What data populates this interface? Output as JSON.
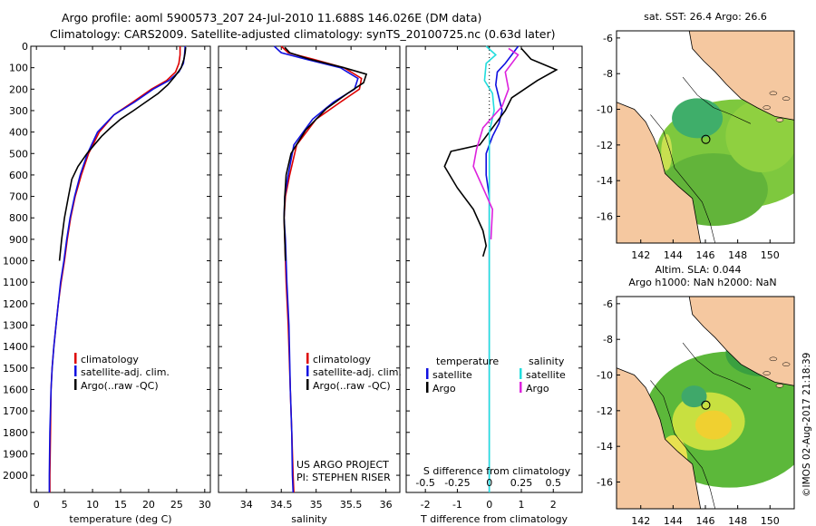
{
  "header": {
    "line1": "Argo profile: aoml 5900573_207 24-Jul-2010 11.688S 146.026E (DM data)",
    "line2": "Climatology: CARS2009. Satellite-adjusted climatology: synTS_20100725.nc (0.63d later)"
  },
  "colors": {
    "climatology": "#dd0000",
    "satellite": "#1010e0",
    "argo": "#000000",
    "sat_salinity": "#22dddd",
    "argo_salinity": "#dd22dd",
    "land": "#f5c8a0"
  },
  "chart_data": [
    {
      "type": "line",
      "id": "temperature",
      "xlabel": "temperature (deg C)",
      "xlim": [
        -1,
        31
      ],
      "ylim": [
        2080,
        0
      ],
      "xticks": [
        0,
        5,
        10,
        15,
        20,
        25,
        30
      ],
      "xtick_labels": [
        "0",
        "5",
        "10",
        "15",
        "20",
        "25",
        "30"
      ],
      "yticks": [
        0,
        100,
        200,
        300,
        400,
        500,
        600,
        700,
        800,
        900,
        1000,
        1100,
        1200,
        1300,
        1400,
        1500,
        1600,
        1700,
        1800,
        1900,
        2000
      ],
      "ytick_labels": [
        "0",
        "100",
        "200",
        "300",
        "400",
        "500",
        "600",
        "700",
        "800",
        "900",
        "1000",
        "1100",
        "1200",
        "1300",
        "1400",
        "1500",
        "1600",
        "1700",
        "1800",
        "1900",
        "2000"
      ],
      "legend": [
        "climatology",
        "satellite-adj. clim.",
        "Argo(..raw -QC)"
      ],
      "series": [
        {
          "name": "climatology",
          "color": "#dd0000",
          "x": [
            25.6,
            25.6,
            25.4,
            24.8,
            23.2,
            20.5,
            17.2,
            13.8,
            11.2,
            9.3,
            8.0,
            6.9,
            6.1,
            5.5,
            5.0,
            4.4,
            3.9,
            3.5,
            3.1,
            2.8,
            2.6,
            2.5,
            2.4,
            2.4
          ],
          "y": [
            0,
            40,
            80,
            120,
            160,
            200,
            260,
            320,
            400,
            500,
            600,
            700,
            800,
            900,
            1000,
            1100,
            1200,
            1300,
            1400,
            1500,
            1600,
            1800,
            2000,
            2080
          ]
        },
        {
          "name": "satellite",
          "color": "#1010e0",
          "x": [
            26.5,
            26.4,
            26.2,
            25.4,
            23.6,
            20.8,
            17.5,
            13.8,
            10.9,
            9.1,
            7.8,
            6.8,
            6.0,
            5.4,
            4.9,
            4.3,
            3.9,
            3.5,
            3.1,
            2.8,
            2.6,
            2.4,
            2.3,
            2.3
          ],
          "y": [
            0,
            40,
            80,
            120,
            160,
            200,
            260,
            320,
            400,
            500,
            600,
            700,
            800,
            900,
            1000,
            1100,
            1200,
            1300,
            1400,
            1500,
            1600,
            1800,
            2000,
            2080
          ]
        },
        {
          "name": "Argo",
          "color": "#000000",
          "x": [
            26.6,
            26.5,
            26.3,
            25.8,
            24.7,
            23.4,
            21.7,
            19.5,
            17.3,
            15.0,
            13.2,
            11.6,
            10.3,
            9.0,
            7.4,
            6.3,
            5.7,
            5.0,
            4.5,
            4.1
          ],
          "y": [
            5,
            30,
            60,
            100,
            140,
            180,
            220,
            260,
            300,
            340,
            380,
            420,
            460,
            500,
            560,
            620,
            700,
            800,
            900,
            1000
          ]
        }
      ]
    },
    {
      "type": "line",
      "id": "salinity",
      "xlabel": "salinity",
      "xlim": [
        33.6,
        36.2
      ],
      "ylim": [
        2080,
        0
      ],
      "xticks": [
        34,
        34.5,
        35,
        35.5,
        36
      ],
      "xtick_labels": [
        "34",
        "34.5",
        "35",
        "35.5",
        "36"
      ],
      "legend": [
        "climatology",
        "satellite-adj. clim.",
        "Argo(..raw -QC)"
      ],
      "series": [
        {
          "name": "climatology",
          "color": "#dd0000",
          "x": [
            34.5,
            34.6,
            34.95,
            35.4,
            35.65,
            35.62,
            35.35,
            35.0,
            34.72,
            34.62,
            34.56,
            34.54,
            34.55,
            34.57,
            34.6,
            34.63,
            34.65,
            34.67,
            34.68
          ],
          "y": [
            0,
            30,
            60,
            100,
            150,
            200,
            260,
            340,
            460,
            600,
            700,
            800,
            900,
            1100,
            1300,
            1600,
            1800,
            2000,
            2080
          ]
        },
        {
          "name": "satellite",
          "color": "#1010e0",
          "x": [
            34.4,
            34.5,
            34.85,
            35.35,
            35.6,
            35.55,
            35.25,
            34.95,
            34.68,
            34.6,
            34.55,
            34.54,
            34.56,
            34.58,
            34.61,
            34.63,
            34.65,
            34.66,
            34.67
          ],
          "y": [
            0,
            30,
            60,
            100,
            150,
            200,
            260,
            340,
            460,
            600,
            700,
            800,
            900,
            1100,
            1300,
            1600,
            1800,
            2000,
            2080
          ]
        },
        {
          "name": "Argo",
          "color": "#000000",
          "x": [
            34.55,
            34.62,
            34.9,
            35.4,
            35.72,
            35.68,
            35.45,
            35.15,
            34.85,
            34.64,
            34.57,
            34.55,
            34.54,
            34.55,
            34.56
          ],
          "y": [
            5,
            30,
            60,
            100,
            130,
            170,
            220,
            290,
            390,
            500,
            600,
            700,
            800,
            900,
            1000
          ]
        }
      ]
    },
    {
      "type": "line",
      "id": "difference",
      "xlabel": "T difference from climatology",
      "x2label": "S difference from climatology",
      "xlim": [
        -2.6,
        2.9
      ],
      "ylim": [
        2080,
        0
      ],
      "xticks": [
        -2,
        -1,
        0,
        1,
        2
      ],
      "xtick_labels": [
        "-2",
        "-1",
        "0",
        "1",
        "2"
      ],
      "x2ticks": [
        -0.5,
        -0.25,
        0,
        0.25,
        0.5
      ],
      "x2tick_labels": [
        "-0.5",
        "-0.25",
        "0",
        "0.25",
        "0.5"
      ],
      "legend": {
        "temperature": "temperature",
        "salinity": "salinity",
        "satellite": "satellite",
        "argo": "Argo"
      },
      "series": [
        {
          "name": "T satellite",
          "color": "#1010e0",
          "x": [
            0.9,
            0.7,
            0.5,
            0.25,
            0.2,
            0.3,
            0.4,
            0.3,
            0.1,
            -0.1,
            -0.1,
            0,
            0,
            0,
            0,
            0
          ],
          "y": [
            0,
            40,
            80,
            120,
            180,
            240,
            300,
            360,
            420,
            500,
            600,
            700,
            800,
            1000,
            1500,
            2080
          ]
        },
        {
          "name": "T Argo",
          "color": "#000000",
          "x": [
            1.0,
            1.3,
            2.1,
            1.5,
            1.1,
            0.7,
            0.5,
            -0.3,
            -1.2,
            -1.4,
            -1.0,
            -0.5,
            -0.2,
            -0.1,
            -0.2
          ],
          "y": [
            10,
            60,
            110,
            160,
            200,
            240,
            300,
            460,
            490,
            560,
            660,
            760,
            860,
            930,
            980
          ]
        },
        {
          "name": "S satellite",
          "color": "#22dddd",
          "x": [
            -0.1,
            0.2,
            -0.1,
            -0.15,
            0.1,
            0.15,
            0,
            0,
            0,
            0
          ],
          "y": [
            0,
            40,
            80,
            160,
            220,
            300,
            400,
            600,
            1000,
            2080
          ]
        },
        {
          "name": "S Argo",
          "color": "#dd22dd",
          "x": [
            0.6,
            0.9,
            0.5,
            0.6,
            0.4,
            -0.2,
            -0.4,
            -0.5,
            -0.2,
            0.1,
            0.05
          ],
          "y": [
            10,
            40,
            120,
            200,
            280,
            380,
            480,
            560,
            660,
            760,
            900
          ]
        }
      ]
    },
    {
      "type": "heatmap",
      "id": "sst-map",
      "title": "sat. SST: 26.4 Argo: 26.6",
      "xticks": [
        142,
        144,
        146,
        148,
        150
      ],
      "xtick_labels": [
        "142",
        "144",
        "146",
        "148",
        "150"
      ],
      "yticks": [
        -6,
        -8,
        -10,
        -12,
        -14,
        -16
      ],
      "ytick_labels": [
        "-6",
        "-8",
        "-10",
        "-12",
        "-14",
        "-16"
      ],
      "xlim": [
        140.5,
        151.5
      ],
      "ylim": [
        -17.5,
        -5.6
      ],
      "profile_location": [
        146.026,
        -11.688
      ]
    },
    {
      "type": "heatmap",
      "id": "sla-map",
      "title": "Altim. SLA: 0.044",
      "subtitle": "Argo h1000: NaN h2000: NaN",
      "xticks": [
        142,
        144,
        146,
        148,
        150
      ],
      "xtick_labels": [
        "142",
        "144",
        "146",
        "148",
        "150"
      ],
      "yticks": [
        -6,
        -8,
        -10,
        -12,
        -14,
        -16
      ],
      "ytick_labels": [
        "-6",
        "-8",
        "-10",
        "-12",
        "-14",
        "-16"
      ],
      "xlim": [
        140.5,
        151.5
      ],
      "ylim": [
        -17.5,
        -5.6
      ],
      "profile_location": [
        146.026,
        -11.688
      ]
    }
  ],
  "annotations": {
    "project": "US ARGO PROJECT",
    "pi": "PI: STEPHEN RISER",
    "credit": "©IMOS 02-Aug-2017 21:18:39"
  }
}
